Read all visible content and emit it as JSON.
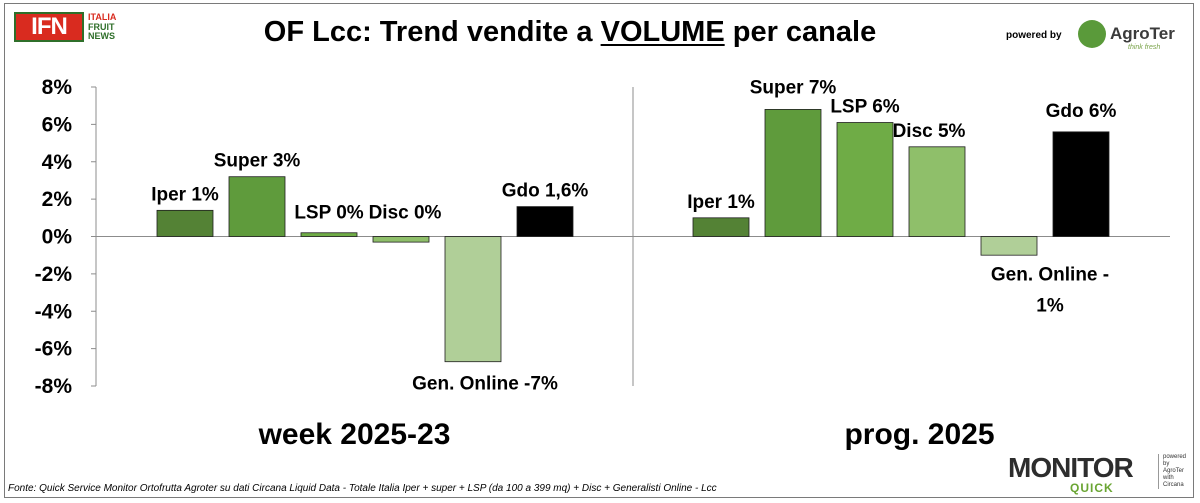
{
  "header": {
    "title_pre": "OF Lcc: Trend vendite a ",
    "title_underlined": "VOLUME",
    "title_post": " per canale",
    "logo_ifn": {
      "mark": "IFN",
      "line1": "ITALIA",
      "line2": "FRUIT",
      "line3": "NEWS"
    },
    "powered_by": "powered by",
    "agroter": {
      "name": "AgroTer",
      "tagline": "think fresh"
    }
  },
  "footer": {
    "source": "Fonte: Quick Service Monitor Ortofrutta Agroter su dati Circana Liquid Data - Totale Italia Iper + super + LSP (da 100 a 399 mq) + Disc + Generalisti Online - Lcc",
    "monitor": {
      "word": "MONITOR",
      "sub": "QUICK",
      "side1": "powered by",
      "side2": "AgroTer",
      "side3": "with",
      "side4": "Circana"
    }
  },
  "chart_data": {
    "type": "bar",
    "title": "OF Lcc: Trend vendite a VOLUME per canale",
    "ylim": [
      -8,
      8
    ],
    "yticks": [
      "8%",
      "6%",
      "4%",
      "2%",
      "0%",
      "-2%",
      "-4%",
      "-6%",
      "-8%"
    ],
    "ytick_values": [
      8,
      6,
      4,
      2,
      0,
      -2,
      -4,
      -6,
      -8
    ],
    "grid": false,
    "colors": [
      "#548235",
      "#5f9b3c",
      "#6fac46",
      "#8fbf6a",
      "#b0cf98",
      "#000000"
    ],
    "groups": [
      {
        "name": "week 2025-23",
        "values": [
          1.4,
          3.2,
          0.2,
          -0.3,
          -6.7,
          1.6
        ],
        "labels": [
          "Iper 1%",
          "Super 3%",
          "LSP 0%",
          "Disc 0%",
          "Gen. Online -7%",
          "Gdo 1,6%"
        ]
      },
      {
        "name": "prog. 2025",
        "values": [
          1.0,
          6.8,
          6.1,
          4.8,
          -1.0,
          5.6
        ],
        "labels": [
          "Iper 1%",
          "Super 7%",
          "LSP 6%",
          "Disc 5%",
          "Gen. Online -",
          "Gdo 6%"
        ],
        "label_extra": "1%"
      }
    ]
  }
}
